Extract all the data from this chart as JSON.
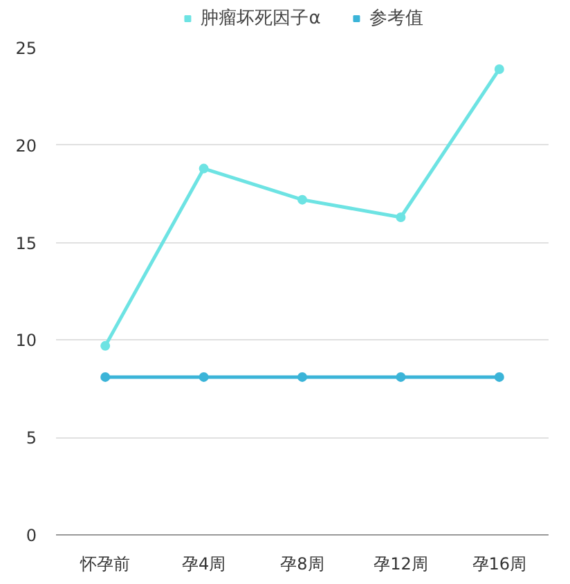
{
  "chart_data": {
    "type": "line",
    "categories": [
      "怀孕前",
      "孕4周",
      "孕8周",
      "孕12周",
      "孕16周"
    ],
    "series": [
      {
        "name": "肿瘤坏死因子α",
        "color": "#6de3e3",
        "values": [
          9.7,
          18.8,
          17.2,
          16.3,
          23.9
        ]
      },
      {
        "name": "参考值",
        "color": "#3bb4d8",
        "values": [
          8.1,
          8.1,
          8.1,
          8.1,
          8.1
        ]
      }
    ],
    "ylim": [
      0,
      25
    ],
    "yticks": [
      0,
      5,
      10,
      15,
      20,
      25
    ],
    "grid": "y",
    "legend": "top",
    "marker": "circle",
    "line_style": "solid"
  }
}
